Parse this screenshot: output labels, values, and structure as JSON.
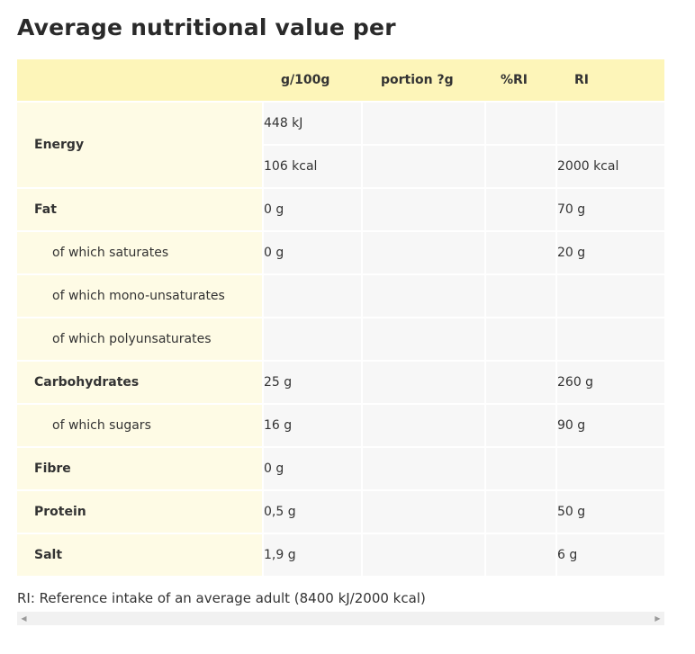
{
  "title": "Average nutritional value per",
  "header": {
    "label": "",
    "per100g": "g/100g",
    "portion": "portion ?g",
    "pct_ri": "%RI",
    "ri": "RI"
  },
  "rows": [
    {
      "label": "Energy",
      "values": [
        "448 kJ",
        "106 kcal"
      ],
      "portion": "",
      "pct_ri": "",
      "ri": [
        "",
        "2000 kcal"
      ]
    },
    {
      "label": "Fat",
      "per100g": "0 g",
      "portion": "",
      "pct_ri": "",
      "ri": "70 g"
    },
    {
      "label": "of which saturates",
      "per100g": "0 g",
      "portion": "",
      "pct_ri": "",
      "ri": "20 g"
    },
    {
      "label": "of which mono-unsaturates",
      "per100g": "",
      "portion": "",
      "pct_ri": "",
      "ri": ""
    },
    {
      "label": "of which polyunsaturates",
      "per100g": "",
      "portion": "",
      "pct_ri": "",
      "ri": ""
    },
    {
      "label": "Carbohydrates",
      "per100g": "25 g",
      "portion": "",
      "pct_ri": "",
      "ri": "260 g"
    },
    {
      "label": "of which sugars",
      "per100g": "16 g",
      "portion": "",
      "pct_ri": "",
      "ri": "90 g"
    },
    {
      "label": "Fibre",
      "per100g": "0 g",
      "portion": "",
      "pct_ri": "",
      "ri": ""
    },
    {
      "label": "Protein",
      "per100g": "0,5 g",
      "portion": "",
      "pct_ri": "",
      "ri": "50 g"
    },
    {
      "label": "Salt",
      "per100g": "1,9 g",
      "portion": "",
      "pct_ri": "",
      "ri": "6 g"
    }
  ],
  "footnote": "RI: Reference intake of an average adult (8400 kJ/2000 kcal)",
  "scrollbar": {
    "left_icon": "scroll-left-arrow-icon",
    "right_icon": "scroll-right-arrow-icon"
  },
  "colors": {
    "header_bg": "#fdf5b9",
    "label_bg": "#fefbe5",
    "cell_bg": "#f7f7f7"
  }
}
